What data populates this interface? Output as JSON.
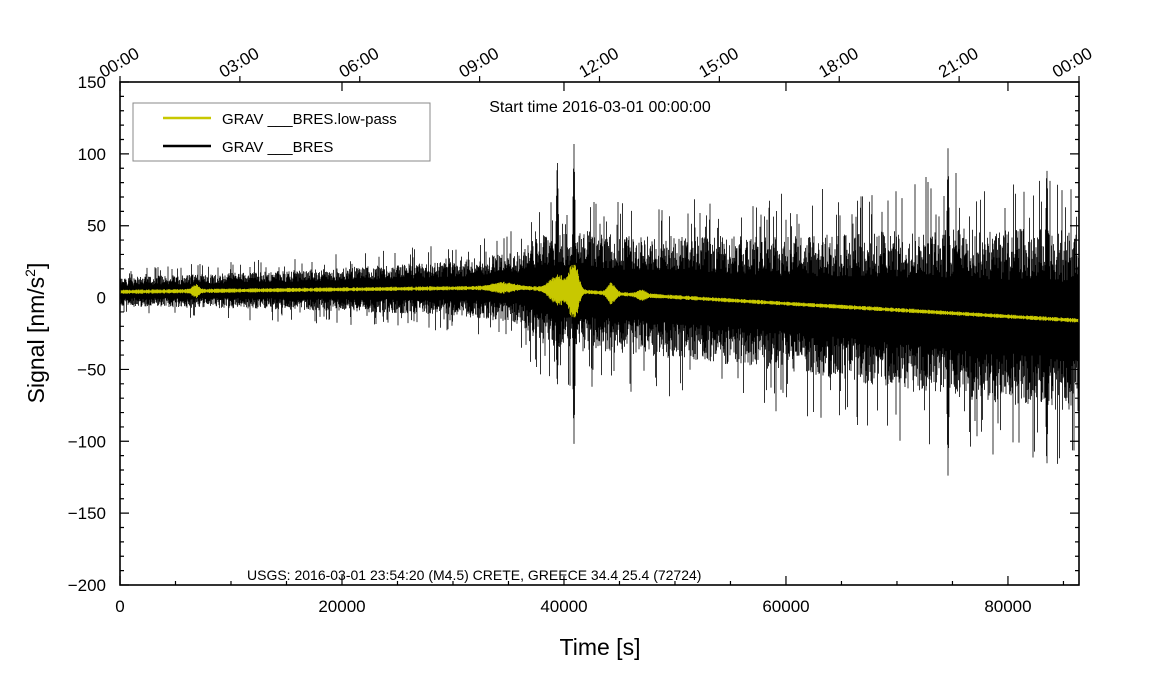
{
  "chart_data": {
    "type": "line",
    "title": "Start time 2016-03-01 00:00:00",
    "xlabel": "Time [s]",
    "ylabel_main": "Signal [nm/s",
    "ylabel_sup": "2",
    "ylabel_close": "]",
    "xlim": [
      0,
      86400
    ],
    "ylim": [
      -200,
      150
    ],
    "x_ticks": [
      0,
      20000,
      40000,
      60000,
      80000
    ],
    "x_tick_labels": [
      "0",
      "20000",
      "40000",
      "60000",
      "80000"
    ],
    "y_ticks": [
      -200,
      -150,
      -100,
      -50,
      0,
      50,
      100,
      150
    ],
    "y_tick_labels": [
      "−200",
      "−150",
      "−100",
      "−50",
      "0",
      "50",
      "100",
      "150"
    ],
    "top_axis_ticks": [
      0,
      10800,
      21600,
      32400,
      43200,
      54000,
      64800,
      75600,
      86400
    ],
    "top_axis_labels": [
      "00:00",
      "03:00",
      "06:00",
      "09:00",
      "12:00",
      "15:00",
      "18:00",
      "21:00",
      "00:00"
    ],
    "legend_position": "top-left",
    "annotation": "USGS: 2016-03-01 23:54:20 (M4.5) CRETE, GREECE 34.4 25.4 (72724)",
    "series": [
      {
        "name": "GRAV ___BRES.low-pass",
        "color": "#c8c800",
        "baseline": {
          "x": [
            0,
            36000,
            44000,
            86400
          ],
          "y": [
            4,
            7,
            3,
            -16
          ]
        },
        "noise_amplitude": 1.5,
        "events": [
          {
            "x": 6800,
            "amp": 4,
            "width": 400
          },
          {
            "x": 34500,
            "amp": 3,
            "width": 1200
          },
          {
            "x": 39500,
            "amp": 10,
            "width": 1000
          },
          {
            "x": 40900,
            "amp": 22,
            "width": 500
          },
          {
            "x": 44300,
            "amp": 7,
            "width": 450
          },
          {
            "x": 47000,
            "amp": 3,
            "width": 500
          }
        ]
      },
      {
        "name": "GRAV ___BRES",
        "color": "#000000",
        "envelope": {
          "x": [
            0,
            15000,
            30000,
            36000,
            38000,
            42000,
            45000,
            60000,
            75000,
            86400
          ],
          "amp": [
            12,
            16,
            22,
            30,
            45,
            50,
            48,
            55,
            70,
            75
          ]
        },
        "peaks": [
          {
            "x": 39400,
            "max": 100,
            "min": -65
          },
          {
            "x": 40900,
            "max": 108,
            "min": -103
          },
          {
            "x": 74600,
            "max": 105,
            "min": -125
          },
          {
            "x": 83500,
            "max": 96,
            "min": -123
          }
        ]
      }
    ]
  }
}
